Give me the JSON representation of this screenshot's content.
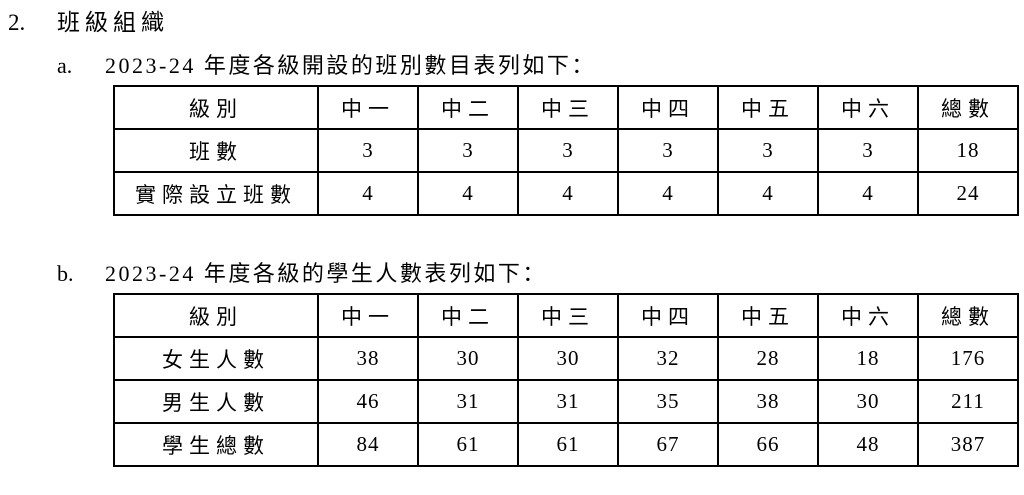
{
  "page": {
    "section_number": "2.",
    "section_title": "班級組織",
    "items": [
      {
        "label": "a.",
        "caption": "2023-24 年度各級開設的班別數目表列如下：",
        "table": {
          "headers": [
            "級別",
            "中一",
            "中二",
            "中三",
            "中四",
            "中五",
            "中六",
            "總數"
          ],
          "rows": [
            {
              "label": "班數",
              "values": [
                "3",
                "3",
                "3",
                "3",
                "3",
                "3",
                "18"
              ]
            },
            {
              "label": "實際設立班數",
              "values": [
                "4",
                "4",
                "4",
                "4",
                "4",
                "4",
                "24"
              ]
            }
          ]
        }
      },
      {
        "label": "b.",
        "caption": "2023-24 年度各級的學生人數表列如下：",
        "table": {
          "headers": [
            "級別",
            "中一",
            "中二",
            "中三",
            "中四",
            "中五",
            "中六",
            "總數"
          ],
          "rows": [
            {
              "label": "女生人數",
              "values": [
                "38",
                "30",
                "30",
                "32",
                "28",
                "18",
                "176"
              ]
            },
            {
              "label": "男生人數",
              "values": [
                "46",
                "31",
                "31",
                "35",
                "38",
                "30",
                "211"
              ]
            },
            {
              "label": "學生總數",
              "values": [
                "84",
                "61",
                "61",
                "67",
                "66",
                "48",
                "387"
              ]
            }
          ]
        }
      }
    ]
  }
}
